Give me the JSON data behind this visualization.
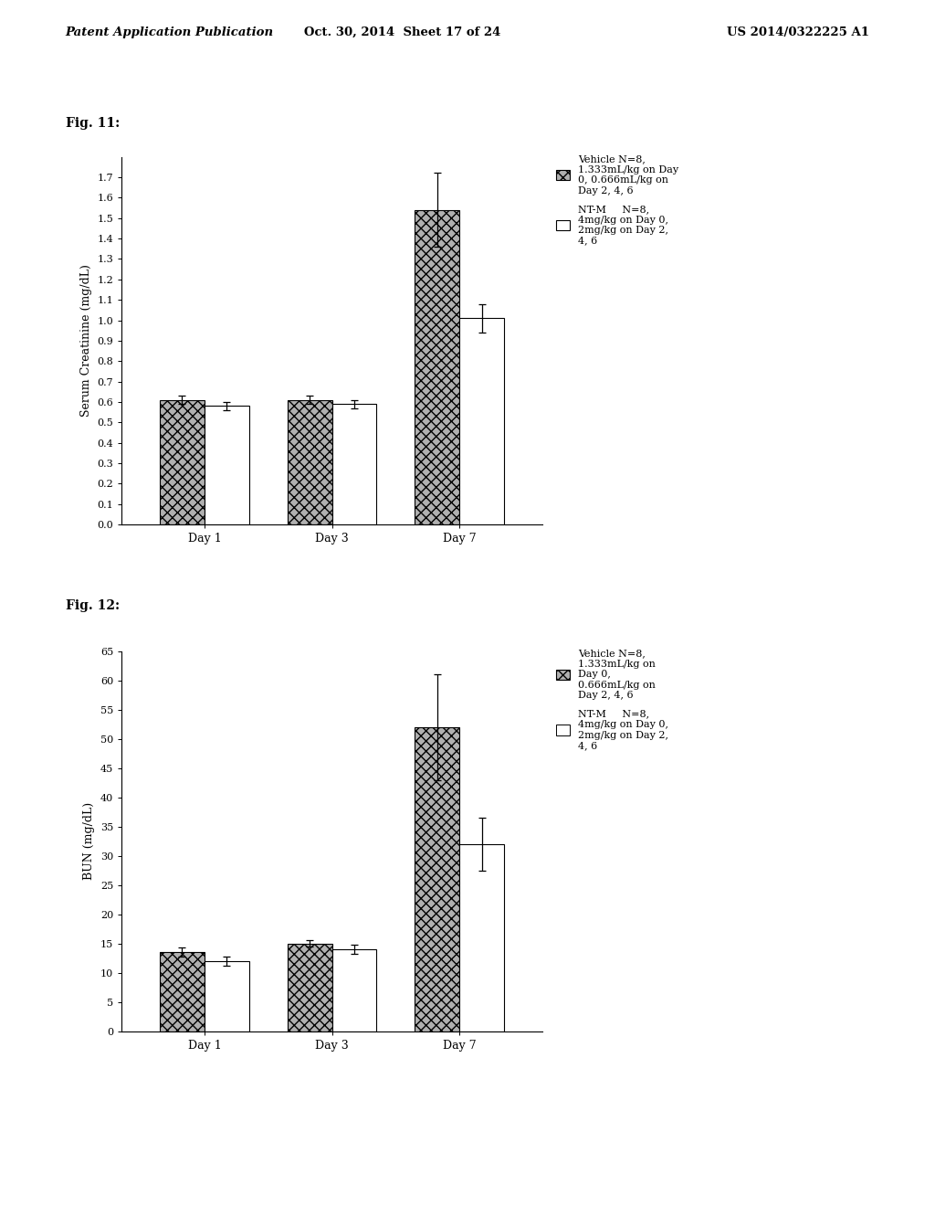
{
  "header_left": "Patent Application Publication",
  "header_mid": "Oct. 30, 2014  Sheet 17 of 24",
  "header_right": "US 2014/0322225 A1",
  "fig11_label": "Fig. 11:",
  "fig12_label": "Fig. 12:",
  "fig11": {
    "ylabel": "Serum Creatinine (mg/dL)",
    "xtick_labels": [
      "Day 1",
      "Day 3",
      "Day 7"
    ],
    "ylim": [
      0.0,
      1.8
    ],
    "yticks": [
      0.0,
      0.1,
      0.2,
      0.3,
      0.4,
      0.5,
      0.6,
      0.7,
      0.8,
      0.9,
      1.0,
      1.1,
      1.2,
      1.3,
      1.4,
      1.5,
      1.6,
      1.7
    ],
    "vehicle_values": [
      0.61,
      0.61,
      1.54
    ],
    "vehicle_errors": [
      0.02,
      0.02,
      0.18
    ],
    "ntm_values": [
      0.58,
      0.59,
      1.01
    ],
    "ntm_errors": [
      0.02,
      0.02,
      0.07
    ],
    "legend1": "Vehicle N=8,\n1.333mL/kg on Day\n0, 0.666mL/kg on\nDay 2, 4, 6",
    "legend2": "NT-M     N=8,\n4mg/kg on Day 0,\n2mg/kg on Day 2,\n4, 6"
  },
  "fig12": {
    "ylabel": "BUN (mg/dL)",
    "xtick_labels": [
      "Day 1",
      "Day 3",
      "Day 7"
    ],
    "ylim": [
      0,
      65
    ],
    "yticks": [
      0,
      5,
      10,
      15,
      20,
      25,
      30,
      35,
      40,
      45,
      50,
      55,
      60,
      65
    ],
    "vehicle_values": [
      13.5,
      15.0,
      52.0
    ],
    "vehicle_errors": [
      0.8,
      0.6,
      9.0
    ],
    "ntm_values": [
      12.0,
      14.0,
      32.0
    ],
    "ntm_errors": [
      0.8,
      0.8,
      4.5
    ],
    "legend1": "Vehicle N=8,\n1.333mL/kg on\nDay 0,\n0.666mL/kg on\nDay 2, 4, 6",
    "legend2": "NT-M     N=8,\n4mg/kg on Day 0,\n2mg/kg on Day 2,\n4, 6"
  },
  "vehicle_color": "#b0b0b0",
  "vehicle_hatch": "xxx",
  "ntm_color": "#ffffff",
  "ntm_hatch": "",
  "bar_edge_color": "#000000",
  "bar_width": 0.35,
  "background_color": "#ffffff",
  "font_size": 9,
  "header_font_size": 9.5
}
